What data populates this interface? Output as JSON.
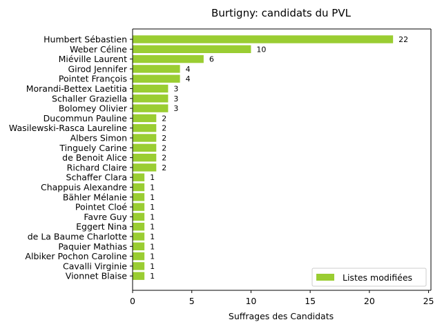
{
  "chart_data": {
    "type": "bar",
    "orientation": "horizontal",
    "title": "Burtigny: candidats du PVL",
    "xlabel": "Suffrages des Candidats",
    "ylabel": "",
    "xlim": [
      0,
      25.2
    ],
    "xticks": [
      0,
      5,
      10,
      15,
      20,
      25
    ],
    "grid": false,
    "legend_position": "lower-right",
    "bar_color": "#9acd32",
    "categories": [
      "Humbert Sébastien",
      "Weber Céline",
      "Miéville Laurent",
      "Girod Jennifer",
      "Pointet François",
      "Morandi-Bettex Laetitia",
      "Schaller Graziella",
      "Bolomey Olivier",
      "Ducommun Pauline",
      "Wasilewski-Rasca Laureline",
      "Albers Simon",
      "Tinguely Carine",
      "de Benoit Alice",
      "Richard Claire",
      "Schaffer Clara",
      "Chappuis Alexandre",
      "Bähler Mélanie",
      "Pointet Cloé",
      "Favre Guy",
      "Eggert Nina",
      "de La Baume Charlotte",
      "Paquier Mathias",
      "Albiker Pochon Caroline",
      "Cavalli Virginie",
      "Vionnet Blaise"
    ],
    "series": [
      {
        "name": "Listes modifiées",
        "values": [
          22,
          10,
          6,
          4,
          4,
          3,
          3,
          3,
          2,
          2,
          2,
          2,
          2,
          2,
          1,
          1,
          1,
          1,
          1,
          1,
          1,
          1,
          1,
          1,
          1
        ]
      }
    ]
  }
}
